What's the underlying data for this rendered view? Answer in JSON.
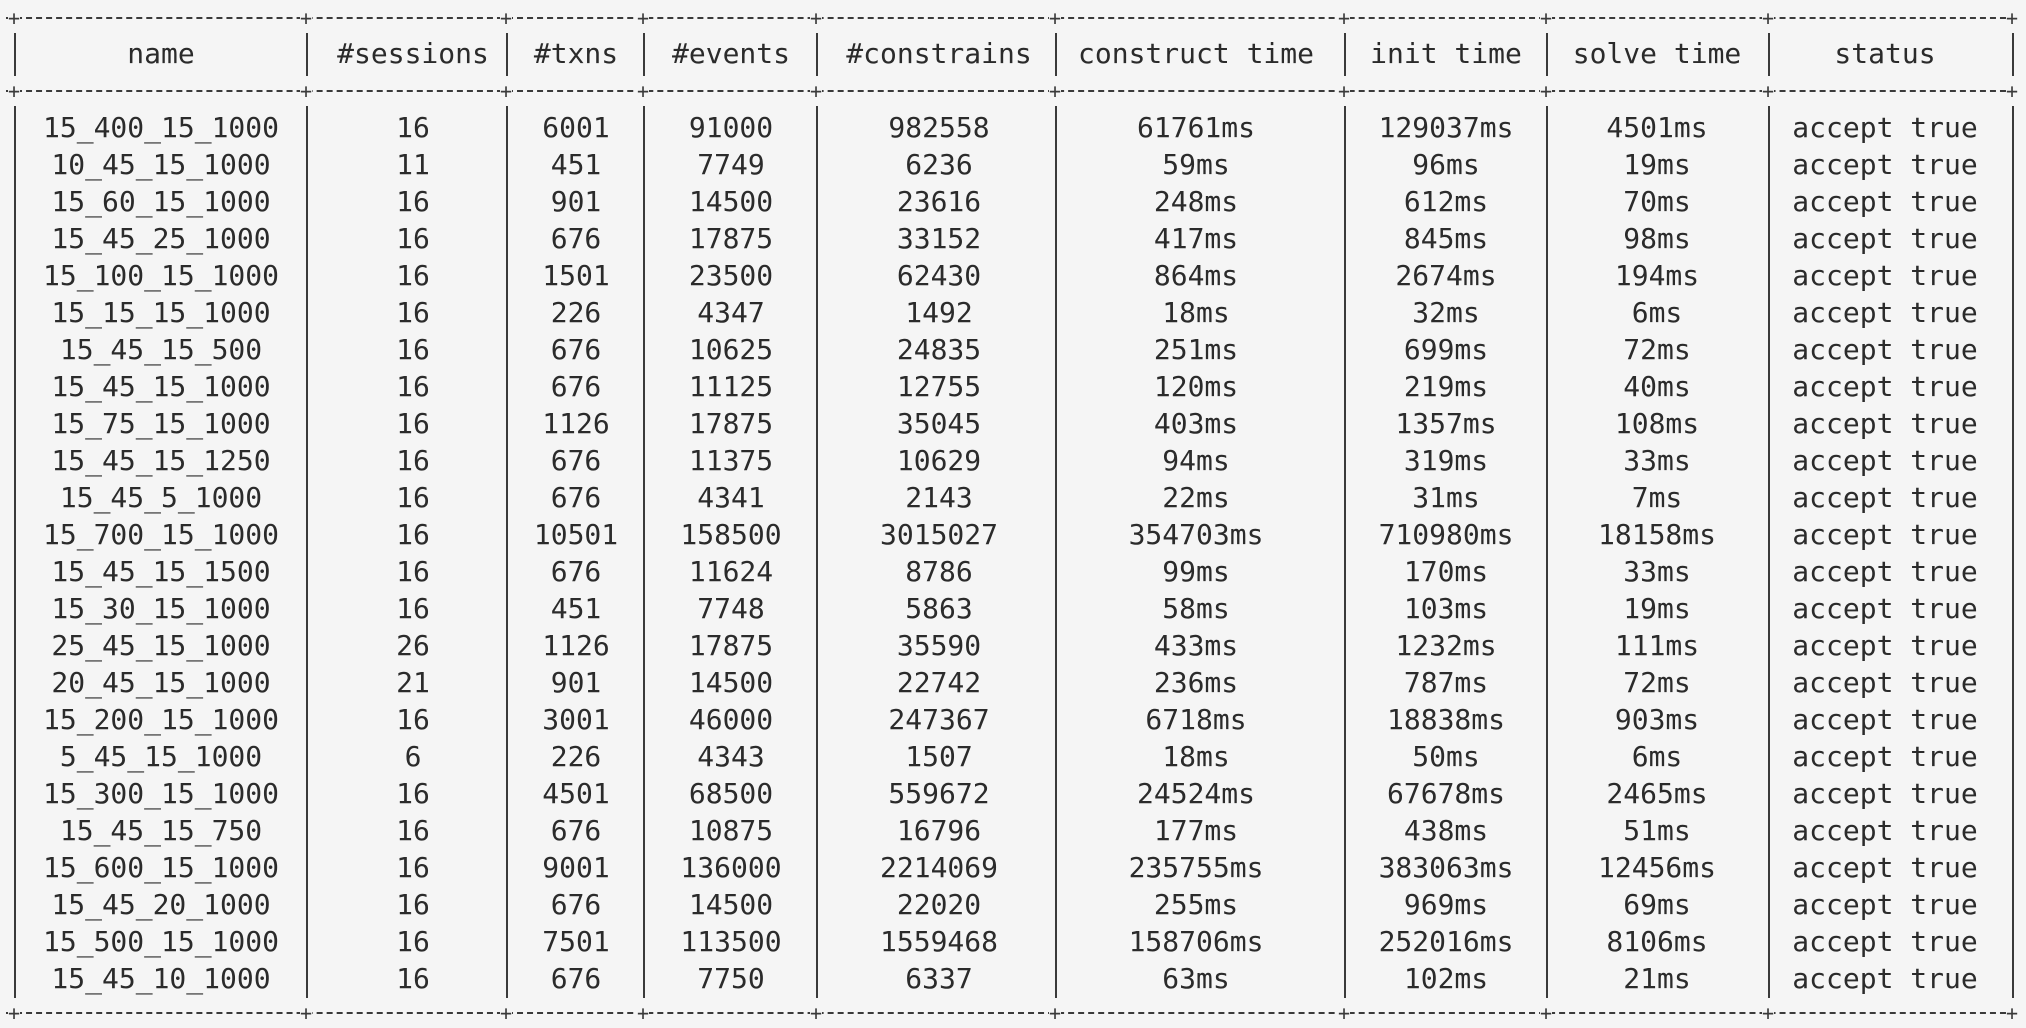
{
  "table": {
    "columns": [
      "name",
      "#sessions",
      "#txns",
      "#events",
      "#constrains",
      "construct time",
      "init time",
      "solve time",
      "status"
    ],
    "rows": [
      [
        "15_400_15_1000",
        "16",
        "6001",
        "91000",
        "982558",
        "61761ms",
        "129037ms",
        "4501ms",
        "accept true"
      ],
      [
        "10_45_15_1000",
        "11",
        "451",
        "7749",
        "6236",
        "59ms",
        "96ms",
        "19ms",
        "accept true"
      ],
      [
        "15_60_15_1000",
        "16",
        "901",
        "14500",
        "23616",
        "248ms",
        "612ms",
        "70ms",
        "accept true"
      ],
      [
        "15_45_25_1000",
        "16",
        "676",
        "17875",
        "33152",
        "417ms",
        "845ms",
        "98ms",
        "accept true"
      ],
      [
        "15_100_15_1000",
        "16",
        "1501",
        "23500",
        "62430",
        "864ms",
        "2674ms",
        "194ms",
        "accept true"
      ],
      [
        "15_15_15_1000",
        "16",
        "226",
        "4347",
        "1492",
        "18ms",
        "32ms",
        "6ms",
        "accept true"
      ],
      [
        "15_45_15_500",
        "16",
        "676",
        "10625",
        "24835",
        "251ms",
        "699ms",
        "72ms",
        "accept true"
      ],
      [
        "15_45_15_1000",
        "16",
        "676",
        "11125",
        "12755",
        "120ms",
        "219ms",
        "40ms",
        "accept true"
      ],
      [
        "15_75_15_1000",
        "16",
        "1126",
        "17875",
        "35045",
        "403ms",
        "1357ms",
        "108ms",
        "accept true"
      ],
      [
        "15_45_15_1250",
        "16",
        "676",
        "11375",
        "10629",
        "94ms",
        "319ms",
        "33ms",
        "accept true"
      ],
      [
        "15_45_5_1000",
        "16",
        "676",
        "4341",
        "2143",
        "22ms",
        "31ms",
        "7ms",
        "accept true"
      ],
      [
        "15_700_15_1000",
        "16",
        "10501",
        "158500",
        "3015027",
        "354703ms",
        "710980ms",
        "18158ms",
        "accept true"
      ],
      [
        "15_45_15_1500",
        "16",
        "676",
        "11624",
        "8786",
        "99ms",
        "170ms",
        "33ms",
        "accept true"
      ],
      [
        "15_30_15_1000",
        "16",
        "451",
        "7748",
        "5863",
        "58ms",
        "103ms",
        "19ms",
        "accept true"
      ],
      [
        "25_45_15_1000",
        "26",
        "1126",
        "17875",
        "35590",
        "433ms",
        "1232ms",
        "111ms",
        "accept true"
      ],
      [
        "20_45_15_1000",
        "21",
        "901",
        "14500",
        "22742",
        "236ms",
        "787ms",
        "72ms",
        "accept true"
      ],
      [
        "15_200_15_1000",
        "16",
        "3001",
        "46000",
        "247367",
        "6718ms",
        "18838ms",
        "903ms",
        "accept true"
      ],
      [
        "5_45_15_1000",
        "6",
        "226",
        "4343",
        "1507",
        "18ms",
        "50ms",
        "6ms",
        "accept true"
      ],
      [
        "15_300_15_1000",
        "16",
        "4501",
        "68500",
        "559672",
        "24524ms",
        "67678ms",
        "2465ms",
        "accept true"
      ],
      [
        "15_45_15_750",
        "16",
        "676",
        "10875",
        "16796",
        "177ms",
        "438ms",
        "51ms",
        "accept true"
      ],
      [
        "15_600_15_1000",
        "16",
        "9001",
        "136000",
        "2214069",
        "235755ms",
        "383063ms",
        "12456ms",
        "accept true"
      ],
      [
        "15_45_20_1000",
        "16",
        "676",
        "14500",
        "22020",
        "255ms",
        "969ms",
        "69ms",
        "accept true"
      ],
      [
        "15_500_15_1000",
        "16",
        "7501",
        "113500",
        "1559468",
        "158706ms",
        "252016ms",
        "8106ms",
        "accept true"
      ],
      [
        "15_45_10_1000",
        "16",
        "676",
        "7750",
        "6337",
        "63ms",
        "102ms",
        "21ms",
        "accept true"
      ]
    ]
  }
}
